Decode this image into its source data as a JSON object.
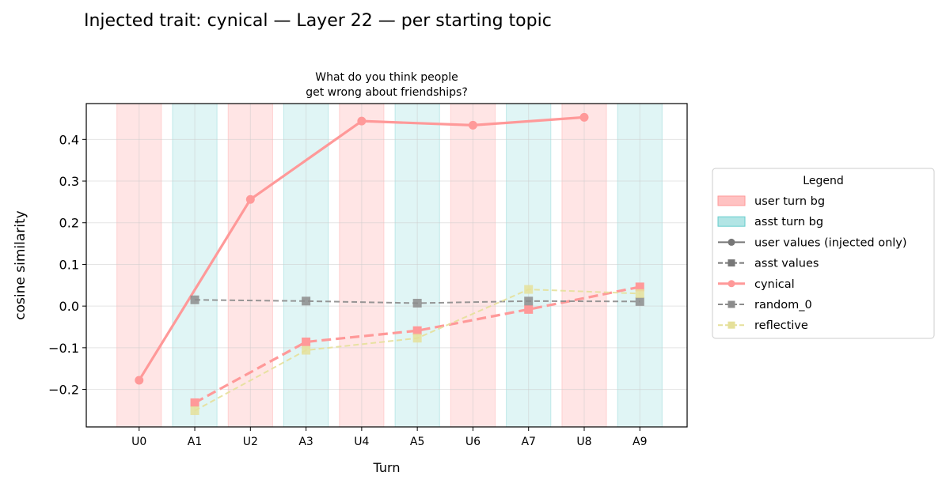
{
  "suptitle": "Injected trait: cynical — Layer 22 — per starting topic",
  "chart_data": {
    "type": "line",
    "title_lines": [
      "What do you think people",
      "get wrong about friendships?"
    ],
    "xlabel": "Turn",
    "ylabel": "cosine similarity",
    "categories": [
      "U0",
      "A1",
      "U2",
      "A3",
      "U4",
      "A5",
      "U6",
      "A7",
      "U8",
      "A9"
    ],
    "yticks": [
      -0.2,
      -0.1,
      0.0,
      0.1,
      0.2,
      0.3,
      0.4
    ],
    "ytick_labels": [
      "−0.2",
      "−0.1",
      "0.0",
      "0.1",
      "0.2",
      "0.3",
      "0.4"
    ],
    "ylim": [
      -0.29,
      0.486
    ],
    "xlim": [
      -0.95,
      9.85
    ],
    "grid": true,
    "turn_bands": {
      "user_indices": [
        0,
        2,
        4,
        6,
        8
      ],
      "asst_indices": [
        1,
        3,
        5,
        7,
        9
      ],
      "user_color": "#ff9999",
      "asst_color": "#66cccc"
    },
    "series": [
      {
        "name": "cynical",
        "style": "user",
        "color": "#ff9999",
        "points": [
          [
            0,
            -0.178
          ],
          [
            2,
            0.256
          ],
          [
            4,
            0.444
          ],
          [
            6,
            0.434
          ],
          [
            8,
            0.453
          ]
        ]
      },
      {
        "name": "cynical",
        "style": "asst",
        "color": "#ff9999",
        "points": [
          [
            1,
            -0.232
          ],
          [
            3,
            -0.086
          ],
          [
            5,
            -0.059
          ],
          [
            7,
            -0.008
          ],
          [
            9,
            0.046
          ]
        ]
      },
      {
        "name": "random_0",
        "style": "asst",
        "color": "#8c8c8c",
        "points": [
          [
            1,
            0.015
          ],
          [
            3,
            0.012
          ],
          [
            5,
            0.007
          ],
          [
            7,
            0.012
          ],
          [
            9,
            0.011
          ]
        ]
      },
      {
        "name": "reflective",
        "style": "asst",
        "color": "#e5e09a",
        "points": [
          [
            1,
            -0.251
          ],
          [
            3,
            -0.106
          ],
          [
            5,
            -0.077
          ],
          [
            7,
            0.04
          ],
          [
            9,
            0.03
          ]
        ]
      }
    ],
    "legend": {
      "title": "Legend",
      "placement": "center-right outside",
      "entries": [
        {
          "label": "user turn bg",
          "kind": "patch",
          "color": "#ff9999"
        },
        {
          "label": "asst turn bg",
          "kind": "patch",
          "color": "#66cccc"
        },
        {
          "label": "user values (injected only)",
          "kind": "line-circle",
          "color": "#777777"
        },
        {
          "label": "asst values",
          "kind": "dash-square",
          "color": "#777777"
        },
        {
          "label": "cynical",
          "kind": "line-circle",
          "color": "#ff9999"
        },
        {
          "label": "random_0",
          "kind": "dash-square",
          "color": "#8c8c8c"
        },
        {
          "label": "reflective",
          "kind": "dash-square",
          "color": "#e5e09a"
        }
      ]
    }
  }
}
